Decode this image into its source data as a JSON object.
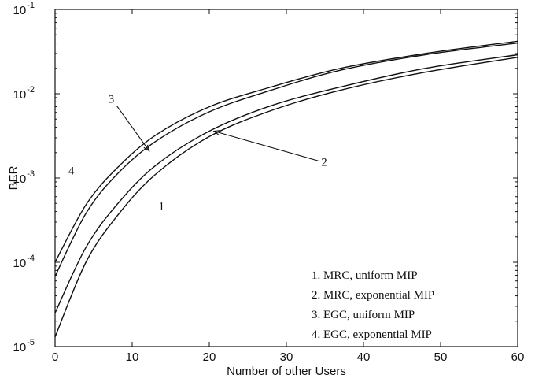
{
  "chart_data": {
    "type": "line",
    "xlabel": "Number of other Users",
    "ylabel": "BER",
    "xlim": [
      0,
      60
    ],
    "ylim": [
      1e-05,
      0.1
    ],
    "yscale": "log",
    "grid": false,
    "legend_position": "bottom-right",
    "xticks": [
      0,
      10,
      20,
      30,
      40,
      50,
      60
    ],
    "xtick_labels": [
      "0",
      "10",
      "20",
      "30",
      "40",
      "50",
      "60"
    ],
    "yticks": [
      {
        "base": "10",
        "exp": "-5"
      },
      {
        "base": "10",
        "exp": "-4"
      },
      {
        "base": "10",
        "exp": "-3"
      },
      {
        "base": "10",
        "exp": "-2"
      },
      {
        "base": "10",
        "exp": "-1"
      }
    ],
    "legend": [
      "1.  MRC, uniform MIP",
      "2.  MRC, exponential MIP",
      "3.  EGC, uniform MIP",
      "4.  EGC, exponential MIP"
    ],
    "series": [
      {
        "label": "1",
        "x": [
          0,
          4,
          8,
          13,
          20,
          28,
          37,
          48,
          60
        ],
        "y": [
          1.3e-05,
          0.0001,
          0.00035,
          0.0011,
          0.0031,
          0.0063,
          0.011,
          0.018,
          0.027
        ]
      },
      {
        "label": "2",
        "x": [
          0,
          4,
          8,
          13,
          20,
          28,
          37,
          48,
          60
        ],
        "y": [
          2.5e-05,
          0.00015,
          0.00048,
          0.0014,
          0.0036,
          0.0072,
          0.012,
          0.02,
          0.029
        ]
      },
      {
        "label": "3",
        "x": [
          0,
          4,
          8,
          13,
          20,
          28,
          37,
          48,
          60
        ],
        "y": [
          6.8e-05,
          0.00038,
          0.0011,
          0.0027,
          0.0061,
          0.011,
          0.019,
          0.029,
          0.04
        ]
      },
      {
        "label": "4",
        "x": [
          0,
          4,
          8,
          13,
          20,
          28,
          37,
          48,
          60
        ],
        "y": [
          0.0001,
          0.00048,
          0.0013,
          0.0032,
          0.007,
          0.012,
          0.02,
          0.03,
          0.042
        ]
      }
    ],
    "annotations": [
      {
        "text": "1",
        "x": 13.8,
        "y": 0.00042,
        "point_x": null,
        "point_y": null
      },
      {
        "text": "2",
        "x": 34.9,
        "y": 0.0014,
        "point_x": 20.6,
        "point_y": 0.0036
      },
      {
        "text": "3",
        "x": 7.3,
        "y": 0.0078,
        "point_x": 12.2,
        "point_y": 0.0021
      },
      {
        "text": "4",
        "x": 2.1,
        "y": 0.0011,
        "point_x": null,
        "point_y": null
      }
    ]
  }
}
